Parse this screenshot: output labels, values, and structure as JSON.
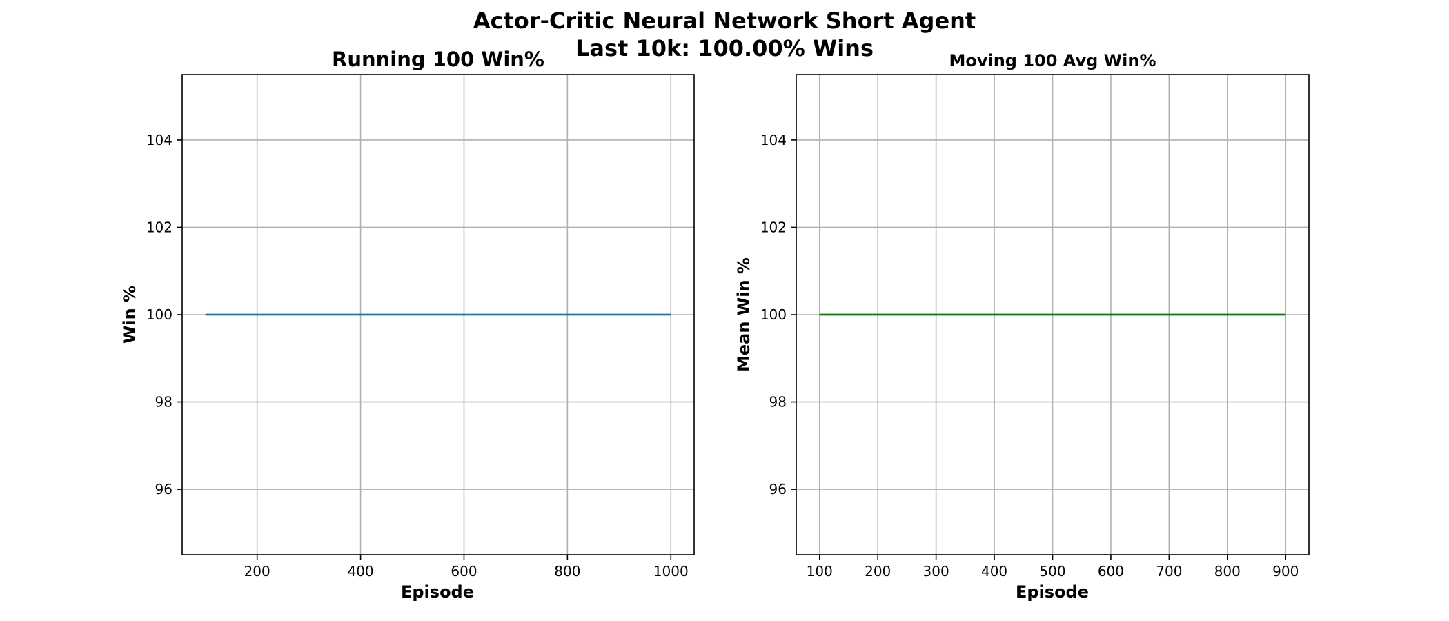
{
  "figure": {
    "suptitle_line1": "Actor-Critic Neural Network Short Agent",
    "suptitle_line2": "Last 10k: 100.00% Wins"
  },
  "chart_data": [
    {
      "type": "line",
      "title": "Running 100 Win%",
      "xlabel": "Episode",
      "ylabel": "Win %",
      "xlim": [
        55,
        1045
      ],
      "ylim": [
        94.5,
        105.5
      ],
      "xticks": [
        200,
        400,
        600,
        800,
        1000
      ],
      "yticks": [
        96,
        98,
        100,
        102,
        104
      ],
      "grid": true,
      "series": [
        {
          "color": "#1f77b4",
          "x": [
            100,
            1000
          ],
          "y": [
            100,
            100
          ]
        }
      ]
    },
    {
      "type": "line",
      "title": "Moving 100 Avg Win%",
      "xlabel": "Episode",
      "ylabel": "Mean Win %",
      "xlim": [
        60,
        940
      ],
      "ylim": [
        94.5,
        105.5
      ],
      "xticks": [
        100,
        200,
        300,
        400,
        500,
        600,
        700,
        800,
        900
      ],
      "yticks": [
        96,
        98,
        100,
        102,
        104
      ],
      "grid": true,
      "series": [
        {
          "color": "#008000",
          "x": [
            100,
            900
          ],
          "y": [
            100,
            100
          ]
        }
      ]
    }
  ]
}
